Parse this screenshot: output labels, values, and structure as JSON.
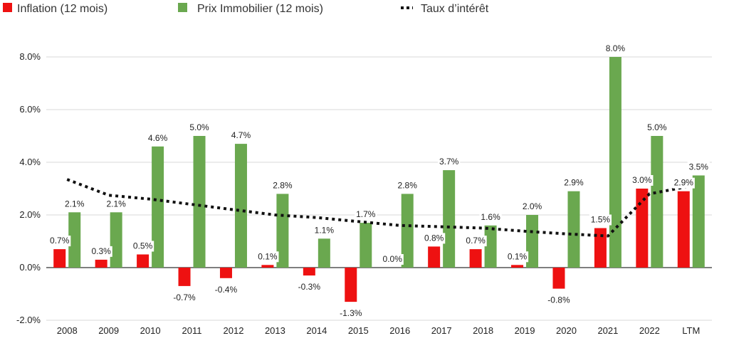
{
  "chart_data": {
    "type": "bar",
    "categories": [
      "2008",
      "2009",
      "2010",
      "2011",
      "2012",
      "2013",
      "2014",
      "2015",
      "2016",
      "2017",
      "2018",
      "2019",
      "2020",
      "2021",
      "2022",
      "LTM"
    ],
    "series": [
      {
        "name": "Inflation (12 mois)",
        "color": "#ee1111",
        "values": [
          0.7,
          0.3,
          0.5,
          -0.7,
          -0.4,
          0.1,
          -0.3,
          -1.3,
          0.0,
          0.8,
          0.7,
          0.1,
          -0.8,
          1.5,
          3.0,
          2.9
        ],
        "labels": [
          "0.7%",
          "0.3%",
          "0.5%",
          "-0.7%",
          "-0.4%",
          "0.1%",
          "-0.3%",
          "-1.3%",
          "0.0%",
          "0.8%",
          "0.7%",
          "0.1%",
          "-0.8%",
          "1.5%",
          "3.0%",
          "2.9%"
        ]
      },
      {
        "name": "Prix Immobilier (12 mois)",
        "color": "#6aa84f",
        "values": [
          2.1,
          2.1,
          4.6,
          5.0,
          4.7,
          2.8,
          1.1,
          1.7,
          2.8,
          3.7,
          1.6,
          2.0,
          2.9,
          8.0,
          5.0,
          3.5
        ],
        "labels": [
          "2.1%",
          "2.1%",
          "4.6%",
          "5.0%",
          "4.7%",
          "2.8%",
          "1.1%",
          "1.7%",
          "2.8%",
          "3.7%",
          "1.6%",
          "2.0%",
          "2.9%",
          "8.0%",
          "5.0%",
          "3.5%"
        ]
      }
    ],
    "line_series": {
      "name": "Taux d’intérêt",
      "color": "#111111",
      "values": [
        3.35,
        2.75,
        2.6,
        2.4,
        2.2,
        2.0,
        1.9,
        1.75,
        1.6,
        1.55,
        1.5,
        1.38,
        1.28,
        1.2,
        2.8,
        3.1
      ]
    },
    "title": "",
    "xlabel": "",
    "ylabel": "",
    "ylim": [
      -2.0,
      8.0
    ],
    "yticks": [
      -2.0,
      0.0,
      2.0,
      4.0,
      6.0,
      8.0
    ],
    "ytick_labels": [
      "-2.0%",
      "0.0%",
      "2.0%",
      "4.0%",
      "6.0%",
      "8.0%"
    ],
    "grid": true,
    "legend_position": "top-left"
  }
}
